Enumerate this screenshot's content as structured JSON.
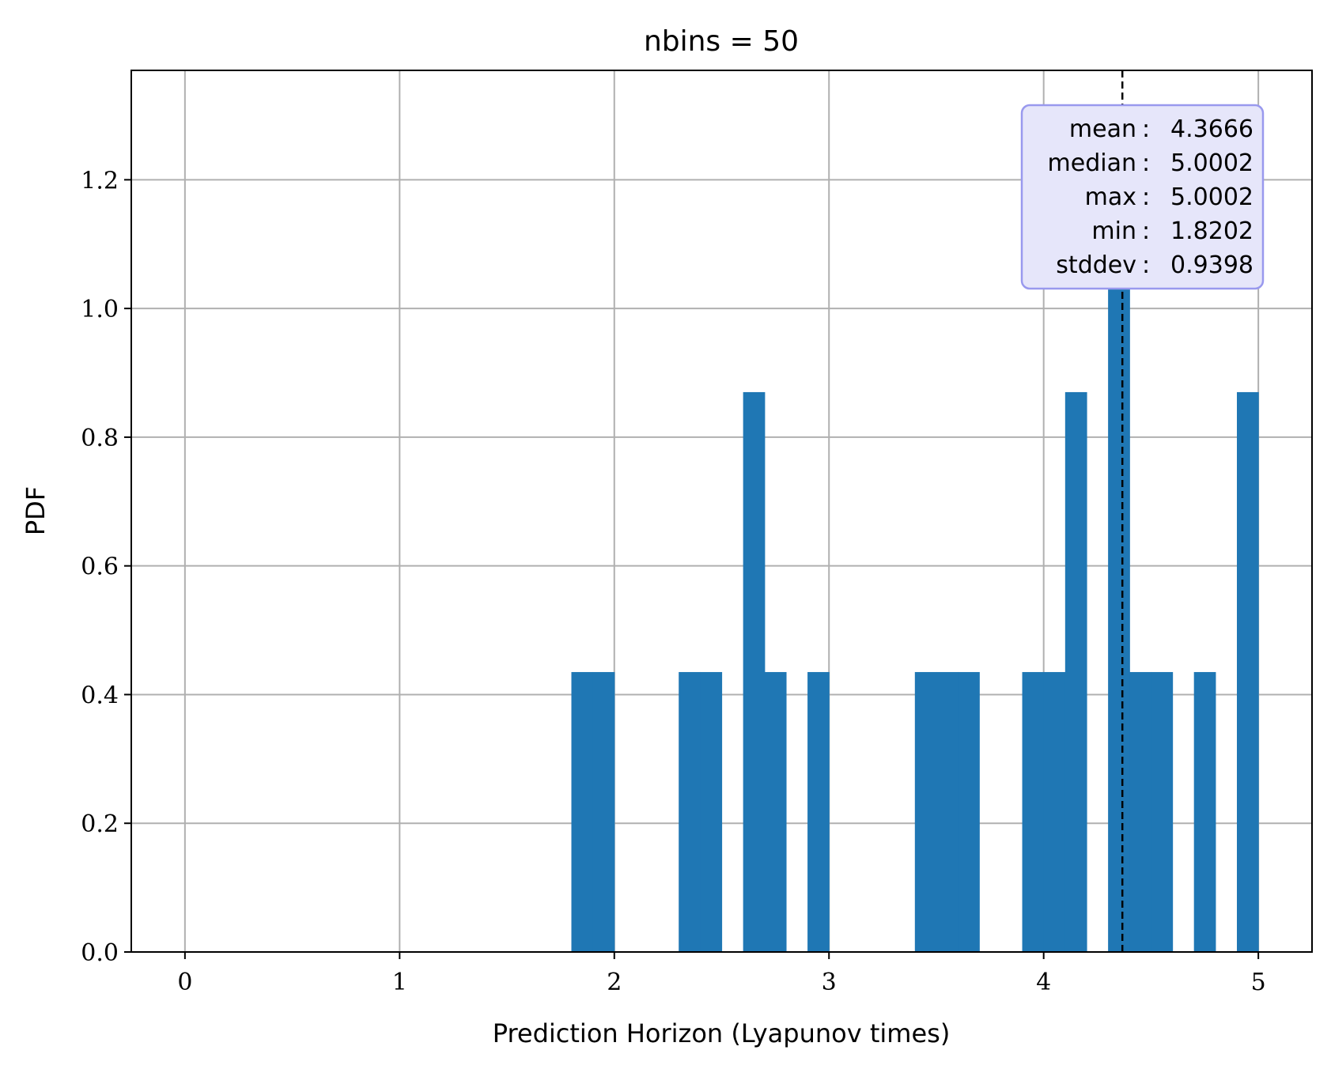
{
  "chart_data": {
    "type": "bar",
    "title": "nbins = 50",
    "xlabel": "Prediction Horizon (Lyapunov times)",
    "ylabel": "PDF",
    "xlim": [
      -0.25,
      5.25
    ],
    "ylim": [
      0,
      1.37
    ],
    "xticks": [
      "0",
      "1",
      "2",
      "3",
      "4",
      "5"
    ],
    "yticks": [
      "0.0",
      "0.2",
      "0.4",
      "0.6",
      "0.8",
      "1.0",
      "1.2"
    ],
    "grid": true,
    "bin_width": 0.1,
    "bins": [
      {
        "start": 1.8,
        "value": 0.435
      },
      {
        "start": 1.9,
        "value": 0.435
      },
      {
        "start": 2.3,
        "value": 0.435
      },
      {
        "start": 2.4,
        "value": 0.435
      },
      {
        "start": 2.6,
        "value": 0.87
      },
      {
        "start": 2.7,
        "value": 0.435
      },
      {
        "start": 2.9,
        "value": 0.435
      },
      {
        "start": 3.4,
        "value": 0.435
      },
      {
        "start": 3.5,
        "value": 0.435
      },
      {
        "start": 3.6,
        "value": 0.435
      },
      {
        "start": 3.9,
        "value": 0.435
      },
      {
        "start": 4.0,
        "value": 0.435
      },
      {
        "start": 4.1,
        "value": 0.87
      },
      {
        "start": 4.3,
        "value": 1.305
      },
      {
        "start": 4.4,
        "value": 0.435
      },
      {
        "start": 4.5,
        "value": 0.435
      },
      {
        "start": 4.7,
        "value": 0.435
      },
      {
        "start": 4.9,
        "value": 0.87
      }
    ],
    "mean_line_x": 4.3666,
    "bar_color": "#1f77b4",
    "stats_box": {
      "rows": [
        {
          "label": "mean",
          "value": "4.3666"
        },
        {
          "label": "median",
          "value": "5.0002"
        },
        {
          "label": "max",
          "value": "5.0002"
        },
        {
          "label": "min",
          "value": "1.8202"
        },
        {
          "label": "stddev",
          "value": "0.9398"
        }
      ],
      "fill": "#e6e6fa",
      "border": "#9999ee"
    }
  }
}
